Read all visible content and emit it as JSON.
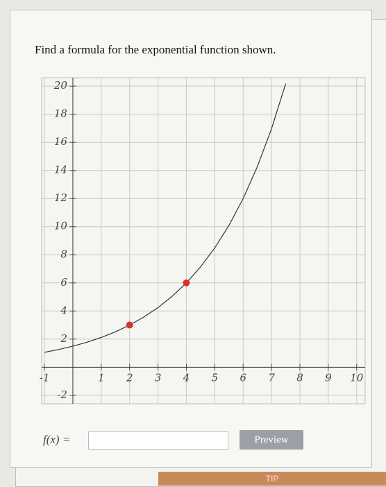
{
  "question": "Find a formula for the exponential function shown.",
  "chart_data": {
    "type": "line",
    "series": [
      {
        "x": [
          -1,
          -0.5,
          0,
          0.5,
          1,
          1.5,
          2,
          2.5,
          3,
          3.5,
          4,
          4.5,
          5,
          5.5,
          6,
          6.5,
          7,
          7.5
        ],
        "values": [
          1.06,
          1.26,
          1.5,
          1.78,
          2.12,
          2.52,
          3,
          3.57,
          4.24,
          5.05,
          6,
          7.14,
          8.49,
          10.09,
          12,
          14.27,
          16.97,
          20.18
        ],
        "color": "#333333"
      }
    ],
    "points": {
      "x": [
        2,
        4
      ],
      "values": [
        3,
        6
      ],
      "color": "#d9342b"
    },
    "xlim": [
      -1.1,
      10.3
    ],
    "ylim": [
      -2.6,
      20.6
    ],
    "xticks": [
      -1,
      1,
      2,
      3,
      4,
      5,
      6,
      7,
      8,
      9,
      10
    ],
    "yticks": [
      -2,
      2,
      4,
      6,
      8,
      10,
      12,
      14,
      16,
      18,
      20
    ],
    "grid": true
  },
  "answer": {
    "label": "f(x) =",
    "button": "Preview"
  },
  "footer": {
    "tip": "TIP"
  }
}
